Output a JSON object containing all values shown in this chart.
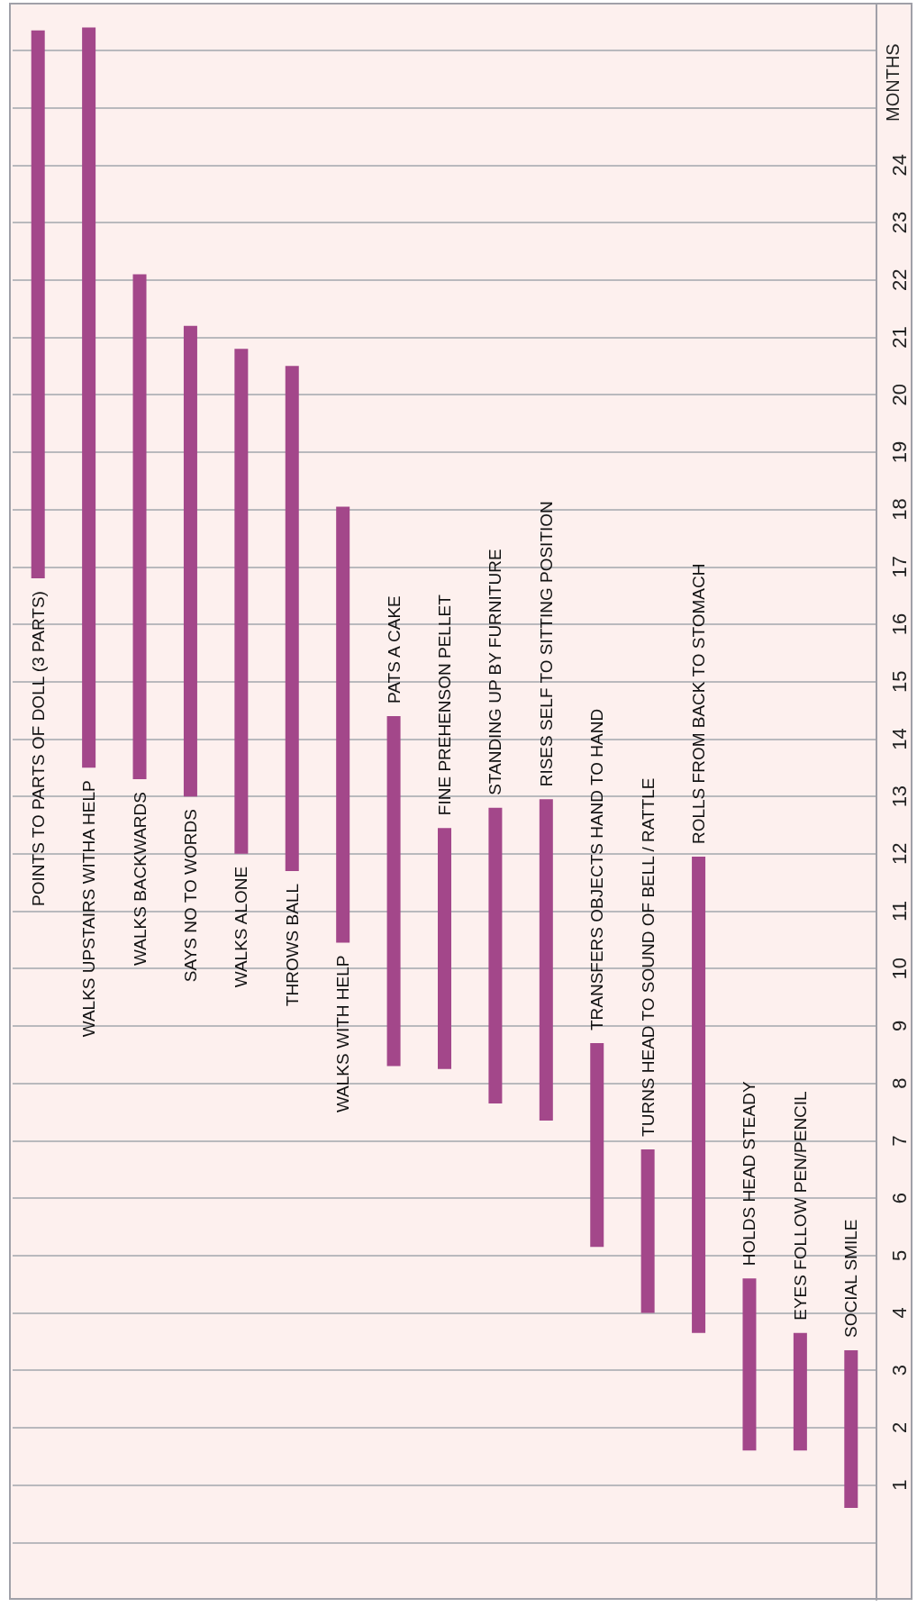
{
  "chart_data": {
    "type": "bar",
    "ylabel": "MONTHS",
    "categories": [
      "POINTS TO PARTS OF DOLL (3 PARTS)",
      "WALKS UPSTAIRS WITHA HELP",
      "WALKS BACKWARDS",
      "SAYS NO TO WORDS",
      "WALKS ALONE",
      "THROWS BALL",
      "WALKS WITH HELP",
      "PATS A CAKE",
      "FINE PREHENSON PELLET",
      "STANDING UP BY FURNITURE",
      "RISES SELF TO SITTING POSITION",
      "TRANSFERS OBJECTS HAND TO HAND",
      "TURNS HEAD TO SOUND OF BELL / RATTLE",
      "ROLLS FROM BACK TO STOMACH",
      "HOLDS HEAD STEADY",
      "EYES FOLLOW PEN/PENCIL",
      "SOCIAL SMILE"
    ],
    "base": [
      16.8,
      13.5,
      13.3,
      13.0,
      12.0,
      11.7,
      10.45,
      8.3,
      8.25,
      7.65,
      7.35,
      5.15,
      4.0,
      3.65,
      1.6,
      1.6,
      0.6
    ],
    "values": [
      9.55,
      12.9,
      8.8,
      8.2,
      8.8,
      8.8,
      7.6,
      6.1,
      4.2,
      5.15,
      5.6,
      3.55,
      2.85,
      8.3,
      3.0,
      2.05,
      2.75
    ],
    "color": "#a3478a",
    "ylim": [
      -1,
      26.8
    ],
    "yticks": [
      {
        "value": 0,
        "label": null
      },
      1,
      2,
      3,
      4,
      5,
      6,
      7,
      8,
      9,
      10,
      11,
      12,
      13,
      14,
      15,
      16,
      17,
      18,
      19,
      20,
      21,
      22,
      23,
      24,
      {
        "value": 25,
        "label": null
      },
      {
        "value": 26,
        "label": null
      }
    ],
    "grid": "y",
    "tick_labels": "y"
  }
}
